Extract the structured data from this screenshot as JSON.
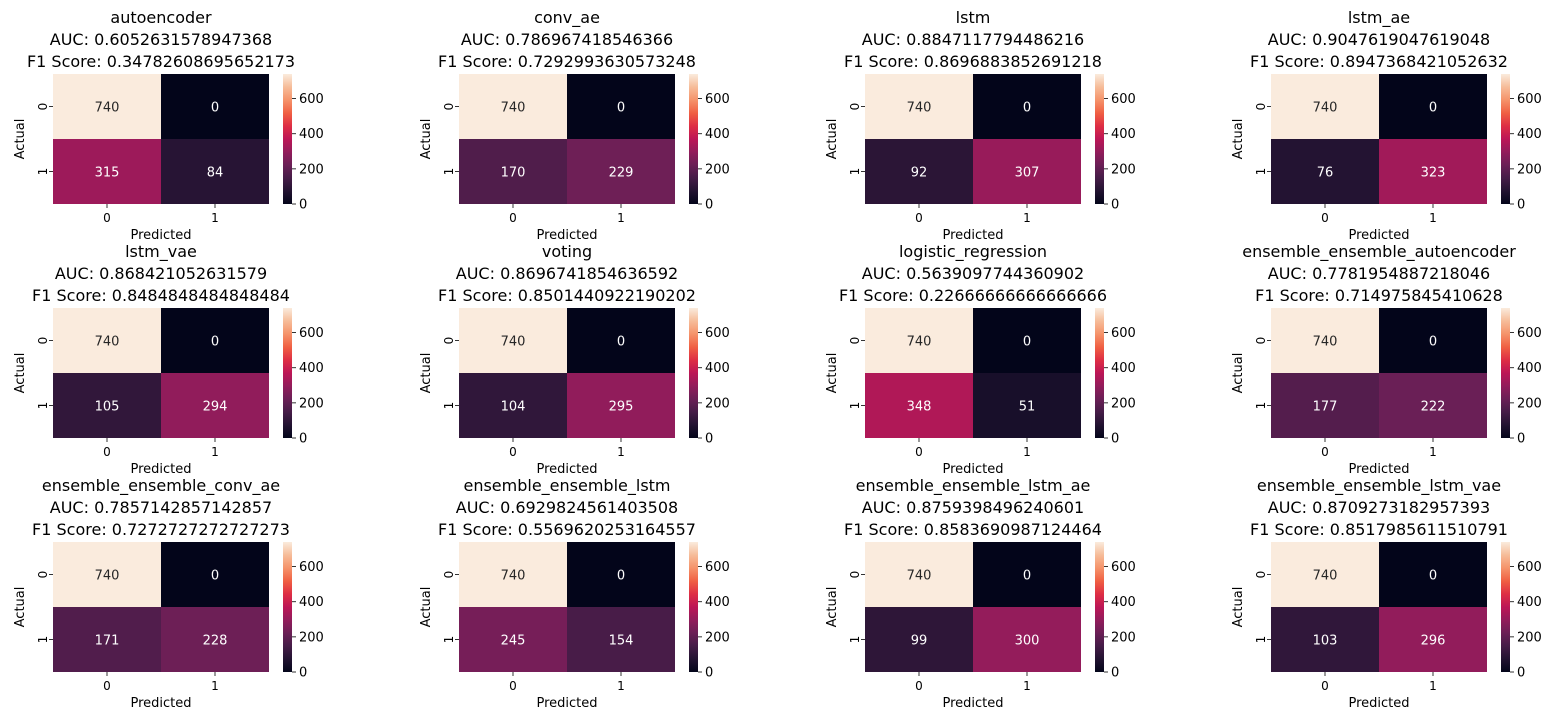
{
  "figure": {
    "colormap": "rocket",
    "colorbar_ticks": [
      0,
      200,
      400,
      600
    ],
    "color_range": [
      0,
      740
    ]
  },
  "chart_data": [
    {
      "type": "heatmap",
      "model": "autoencoder",
      "auc_text": "AUC: 0.6052631578947368",
      "f1_text": "F1 Score: 0.34782608695652173",
      "xlabel": "Predicted",
      "ylabel": "Actual",
      "x_ticks": [
        "0",
        "1"
      ],
      "y_ticks": [
        "0",
        "1"
      ],
      "values": [
        [
          740,
          0
        ],
        [
          315,
          84
        ]
      ]
    },
    {
      "type": "heatmap",
      "model": "conv_ae",
      "auc_text": "AUC: 0.786967418546366",
      "f1_text": "F1 Score: 0.7292993630573248",
      "xlabel": "Predicted",
      "ylabel": "Actual",
      "x_ticks": [
        "0",
        "1"
      ],
      "y_ticks": [
        "0",
        "1"
      ],
      "values": [
        [
          740,
          0
        ],
        [
          170,
          229
        ]
      ]
    },
    {
      "type": "heatmap",
      "model": "lstm",
      "auc_text": "AUC: 0.8847117794486216",
      "f1_text": "F1 Score: 0.8696883852691218",
      "xlabel": "Predicted",
      "ylabel": "Actual",
      "x_ticks": [
        "0",
        "1"
      ],
      "y_ticks": [
        "0",
        "1"
      ],
      "values": [
        [
          740,
          0
        ],
        [
          92,
          307
        ]
      ]
    },
    {
      "type": "heatmap",
      "model": "lstm_ae",
      "auc_text": "AUC: 0.9047619047619048",
      "f1_text": "F1 Score: 0.8947368421052632",
      "xlabel": "Predicted",
      "ylabel": "Actual",
      "x_ticks": [
        "0",
        "1"
      ],
      "y_ticks": [
        "0",
        "1"
      ],
      "values": [
        [
          740,
          0
        ],
        [
          76,
          323
        ]
      ]
    },
    {
      "type": "heatmap",
      "model": "lstm_vae",
      "auc_text": "AUC: 0.868421052631579",
      "f1_text": "F1 Score: 0.8484848484848484",
      "xlabel": "Predicted",
      "ylabel": "Actual",
      "x_ticks": [
        "0",
        "1"
      ],
      "y_ticks": [
        "0",
        "1"
      ],
      "values": [
        [
          740,
          0
        ],
        [
          105,
          294
        ]
      ]
    },
    {
      "type": "heatmap",
      "model": "voting",
      "auc_text": "AUC: 0.8696741854636592",
      "f1_text": "F1 Score: 0.8501440922190202",
      "xlabel": "Predicted",
      "ylabel": "Actual",
      "x_ticks": [
        "0",
        "1"
      ],
      "y_ticks": [
        "0",
        "1"
      ],
      "values": [
        [
          740,
          0
        ],
        [
          104,
          295
        ]
      ]
    },
    {
      "type": "heatmap",
      "model": "logistic_regression",
      "auc_text": "AUC: 0.5639097744360902",
      "f1_text": "F1 Score: 0.22666666666666666",
      "xlabel": "Predicted",
      "ylabel": "Actual",
      "x_ticks": [
        "0",
        "1"
      ],
      "y_ticks": [
        "0",
        "1"
      ],
      "values": [
        [
          740,
          0
        ],
        [
          348,
          51
        ]
      ]
    },
    {
      "type": "heatmap",
      "model": "ensemble_ensemble_autoencoder",
      "auc_text": "AUC: 0.7781954887218046",
      "f1_text": "F1 Score: 0.714975845410628",
      "xlabel": "Predicted",
      "ylabel": "Actual",
      "x_ticks": [
        "0",
        "1"
      ],
      "y_ticks": [
        "0",
        "1"
      ],
      "values": [
        [
          740,
          0
        ],
        [
          177,
          222
        ]
      ]
    },
    {
      "type": "heatmap",
      "model": "ensemble_ensemble_conv_ae",
      "auc_text": "AUC: 0.7857142857142857",
      "f1_text": "F1 Score: 0.7272727272727273",
      "xlabel": "Predicted",
      "ylabel": "Actual",
      "x_ticks": [
        "0",
        "1"
      ],
      "y_ticks": [
        "0",
        "1"
      ],
      "values": [
        [
          740,
          0
        ],
        [
          171,
          228
        ]
      ]
    },
    {
      "type": "heatmap",
      "model": "ensemble_ensemble_lstm",
      "auc_text": "AUC: 0.6929824561403508",
      "f1_text": "F1 Score: 0.5569620253164557",
      "xlabel": "Predicted",
      "ylabel": "Actual",
      "x_ticks": [
        "0",
        "1"
      ],
      "y_ticks": [
        "0",
        "1"
      ],
      "values": [
        [
          740,
          0
        ],
        [
          245,
          154
        ]
      ]
    },
    {
      "type": "heatmap",
      "model": "ensemble_ensemble_lstm_ae",
      "auc_text": "AUC: 0.8759398496240601",
      "f1_text": "F1 Score: 0.8583690987124464",
      "xlabel": "Predicted",
      "ylabel": "Actual",
      "x_ticks": [
        "0",
        "1"
      ],
      "y_ticks": [
        "0",
        "1"
      ],
      "values": [
        [
          740,
          0
        ],
        [
          99,
          300
        ]
      ]
    },
    {
      "type": "heatmap",
      "model": "ensemble_ensemble_lstm_vae",
      "auc_text": "AUC: 0.8709273182957393",
      "f1_text": "F1 Score: 0.8517985611510791",
      "xlabel": "Predicted",
      "ylabel": "Actual",
      "x_ticks": [
        "0",
        "1"
      ],
      "y_ticks": [
        "0",
        "1"
      ],
      "values": [
        [
          740,
          0
        ],
        [
          103,
          296
        ]
      ]
    }
  ]
}
